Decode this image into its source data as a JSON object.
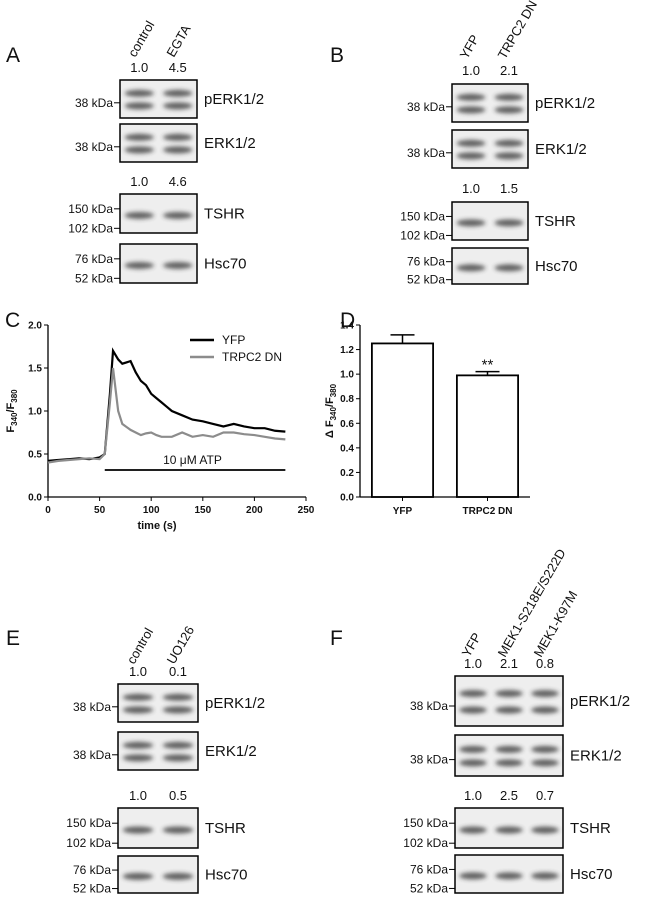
{
  "blots": [
    {
      "letter": "A",
      "lanes": [
        "control",
        "EGTA"
      ],
      "groups": [
        {
          "quant": [
            "1.0",
            "4.5"
          ],
          "blots": [
            {
              "markers": [
                "38 kDa"
              ],
              "label": "pERK1/2"
            },
            {
              "markers": [
                "38 kDa"
              ],
              "label": "ERK1/2"
            }
          ]
        },
        {
          "quant": [
            "1.0",
            "4.6"
          ],
          "blots": [
            {
              "markers": [
                "150 kDa",
                "102 kDa"
              ],
              "label": "TSHR"
            },
            {
              "markers": [
                "76 kDa",
                "52 kDa"
              ],
              "label": "Hsc70"
            }
          ]
        }
      ]
    },
    {
      "letter": "B",
      "lanes": [
        "YFP",
        "TRPC2 DN"
      ],
      "groups": [
        {
          "quant": [
            "1.0",
            "2.1"
          ],
          "blots": [
            {
              "markers": [
                "38 kDa"
              ],
              "label": "pERK1/2"
            },
            {
              "markers": [
                "38 kDa"
              ],
              "label": "ERK1/2"
            }
          ]
        },
        {
          "quant": [
            "1.0",
            "1.5"
          ],
          "blots": [
            {
              "markers": [
                "150 kDa",
                "102 kDa"
              ],
              "label": "TSHR"
            },
            {
              "markers": [
                "76 kDa",
                "52 kDa"
              ],
              "label": "Hsc70"
            }
          ]
        }
      ]
    },
    {
      "letter": "E",
      "lanes": [
        "control",
        "UO126"
      ],
      "groups": [
        {
          "quant": [
            "1.0",
            "0.1"
          ],
          "blots": [
            {
              "markers": [
                "38 kDa"
              ],
              "label": "pERK1/2"
            },
            {
              "markers": [
                "38 kDa"
              ],
              "label": "ERK1/2"
            }
          ]
        },
        {
          "quant": [
            "1.0",
            "0.5"
          ],
          "blots": [
            {
              "markers": [
                "150 kDa",
                "102 kDa"
              ],
              "label": "TSHR"
            },
            {
              "markers": [
                "76 kDa",
                "52 kDa"
              ],
              "label": "Hsc70"
            }
          ]
        }
      ]
    },
    {
      "letter": "F",
      "lanes": [
        "YFP",
        "MEK1-S218E/S222D",
        "MEK1-K97M"
      ],
      "groups": [
        {
          "quant": [
            "1.0",
            "2.1",
            "0.8"
          ],
          "blots": [
            {
              "markers": [
                "38 kDa"
              ],
              "label": "pERK1/2"
            },
            {
              "markers": [
                "38 kDa"
              ],
              "label": "ERK1/2"
            }
          ]
        },
        {
          "quant": [
            "1.0",
            "2.5",
            "0.7"
          ],
          "blots": [
            {
              "markers": [
                "150 kDa",
                "102 kDa"
              ],
              "label": "TSHR"
            },
            {
              "markers": [
                "76 kDa",
                "52 kDa"
              ],
              "label": "Hsc70"
            }
          ]
        }
      ]
    }
  ],
  "chart_data": [
    {
      "type": "line",
      "letter": "C",
      "x_label": "time (s)",
      "y_label": [
        "F",
        "340",
        "/F",
        "380"
      ],
      "annotation": "10 μM ATP",
      "x": [
        0,
        10,
        20,
        30,
        40,
        50,
        55,
        60,
        63,
        68,
        72,
        80,
        85,
        90,
        95,
        100,
        105,
        110,
        115,
        120,
        130,
        140,
        150,
        160,
        170,
        180,
        190,
        200,
        210,
        220,
        230
      ],
      "series": [
        {
          "name": "YFP",
          "color": "#000000",
          "values": [
            0.42,
            0.43,
            0.44,
            0.45,
            0.44,
            0.46,
            0.5,
            1.2,
            1.7,
            1.6,
            1.55,
            1.58,
            1.45,
            1.35,
            1.3,
            1.2,
            1.15,
            1.1,
            1.05,
            1.0,
            0.95,
            0.9,
            0.88,
            0.85,
            0.82,
            0.85,
            0.82,
            0.8,
            0.8,
            0.77,
            0.76
          ]
        },
        {
          "name": "TRPC2 DN",
          "color": "#8c8c8c",
          "values": [
            0.4,
            0.42,
            0.43,
            0.44,
            0.45,
            0.44,
            0.5,
            1.1,
            1.5,
            1.0,
            0.85,
            0.78,
            0.75,
            0.72,
            0.74,
            0.75,
            0.72,
            0.7,
            0.7,
            0.7,
            0.75,
            0.7,
            0.72,
            0.7,
            0.75,
            0.75,
            0.73,
            0.72,
            0.7,
            0.68,
            0.67
          ]
        }
      ],
      "xlim": [
        0,
        250
      ],
      "xticks": [
        0,
        50,
        100,
        150,
        200,
        250
      ],
      "ylim": [
        0,
        2
      ],
      "yticks": [
        {
          "value": 0,
          "label": "0.0"
        },
        0.5,
        {
          "value": 1,
          "label": "1.0"
        },
        1.5,
        {
          "value": 2,
          "label": "2.0"
        }
      ],
      "legend": "upper right"
    },
    {
      "type": "bar",
      "letter": "D",
      "y_label": [
        "Δ F",
        "340",
        "/F",
        "380"
      ],
      "annotation": "**",
      "categories": [
        "YFP",
        "TRPC2 DN"
      ],
      "values": [
        1.25,
        0.99
      ],
      "errors": [
        0.07,
        0.03
      ],
      "color": "#ffffff",
      "ylim": [
        0,
        1.4
      ],
      "yticks": [
        {
          "value": 0,
          "label": "0.0"
        },
        0.2,
        0.4,
        0.6,
        0.8,
        {
          "value": 1,
          "label": "1.0"
        },
        1.2,
        1.4
      ]
    }
  ]
}
